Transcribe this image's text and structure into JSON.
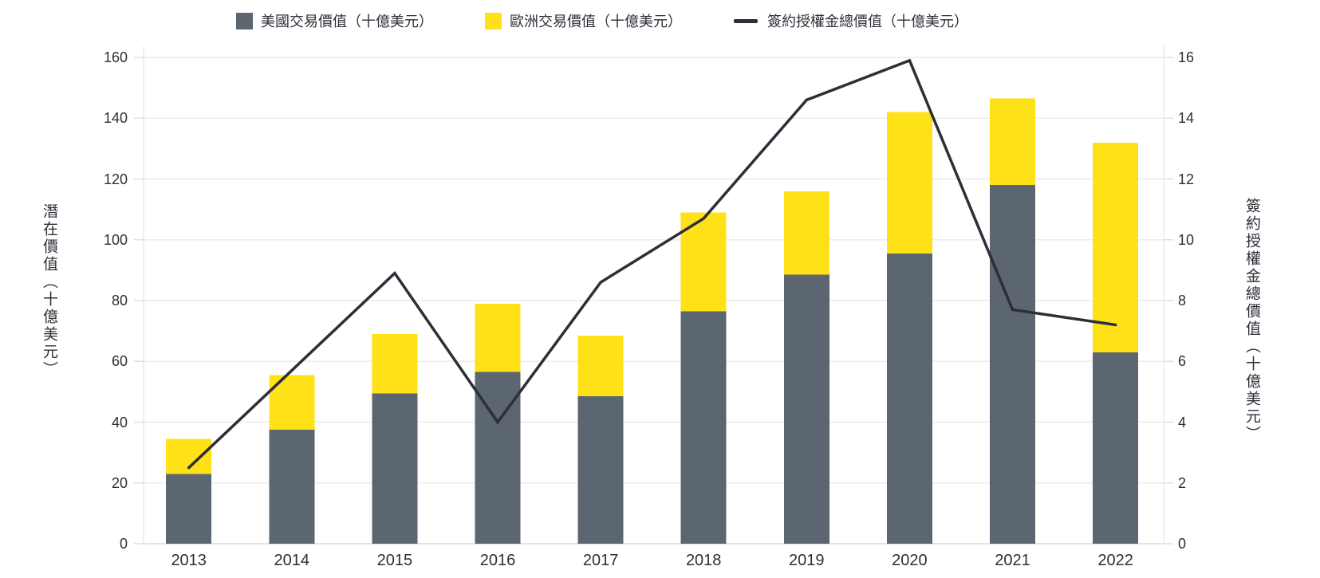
{
  "legend": {
    "items": [
      {
        "id": "us",
        "label": "美國交易價值（十億美元）",
        "swatch": "square",
        "color": "#5C6670"
      },
      {
        "id": "europe",
        "label": "歐洲交易價值（十億美元）",
        "swatch": "square",
        "color": "#FFE118"
      },
      {
        "id": "line",
        "label": "簽約授權金總價值（十億美元）",
        "swatch": "line",
        "color": "#2E2E38"
      }
    ]
  },
  "chart_data": {
    "type": "bar",
    "subtype": "stacked-bars-with-line",
    "categories": [
      "2013",
      "2014",
      "2015",
      "2016",
      "2017",
      "2018",
      "2019",
      "2020",
      "2021",
      "2022"
    ],
    "series": [
      {
        "name": "美國交易價值（十億美元）",
        "type": "bar",
        "stack": "deals",
        "axis": "left",
        "color": "#5C6670",
        "values": [
          23,
          37.5,
          49.5,
          56.5,
          48.5,
          76.5,
          88.5,
          95.5,
          118,
          63
        ]
      },
      {
        "name": "歐洲交易價值（十億美元）",
        "type": "bar",
        "stack": "deals",
        "axis": "left",
        "color": "#FFE118",
        "values": [
          11.5,
          18,
          19.5,
          22.5,
          20,
          32.5,
          27.5,
          46.5,
          28.5,
          69
        ]
      },
      {
        "name": "簽約授權金總價值（十億美元）",
        "type": "line",
        "axis": "right",
        "color": "#2E2E38",
        "values": [
          2.5,
          5.7,
          8.9,
          4.0,
          8.6,
          10.7,
          14.6,
          15.9,
          7.7,
          7.2
        ]
      }
    ],
    "stacked_totals": [
      34.5,
      55.5,
      69,
      79,
      68.5,
      109,
      116,
      142,
      146.5,
      132
    ],
    "left_axis": {
      "title": "潛在價值（十億美元）",
      "min": 0,
      "max": 160,
      "step": 20,
      "tick_labels": [
        "0",
        "20",
        "40",
        "60",
        "80",
        "100",
        "120",
        "140",
        "160"
      ]
    },
    "right_axis": {
      "title": "簽約授權金總價值（十億美元）",
      "min": 0,
      "max": 16,
      "step": 2,
      "tick_labels": [
        "0",
        "2",
        "4",
        "6",
        "8",
        "10",
        "12",
        "14",
        "16"
      ]
    },
    "grid": true,
    "legend_position": "top",
    "background": "#FFFFFF",
    "gridline_color": "#ECECEC",
    "text_color": "#2E2E38"
  }
}
